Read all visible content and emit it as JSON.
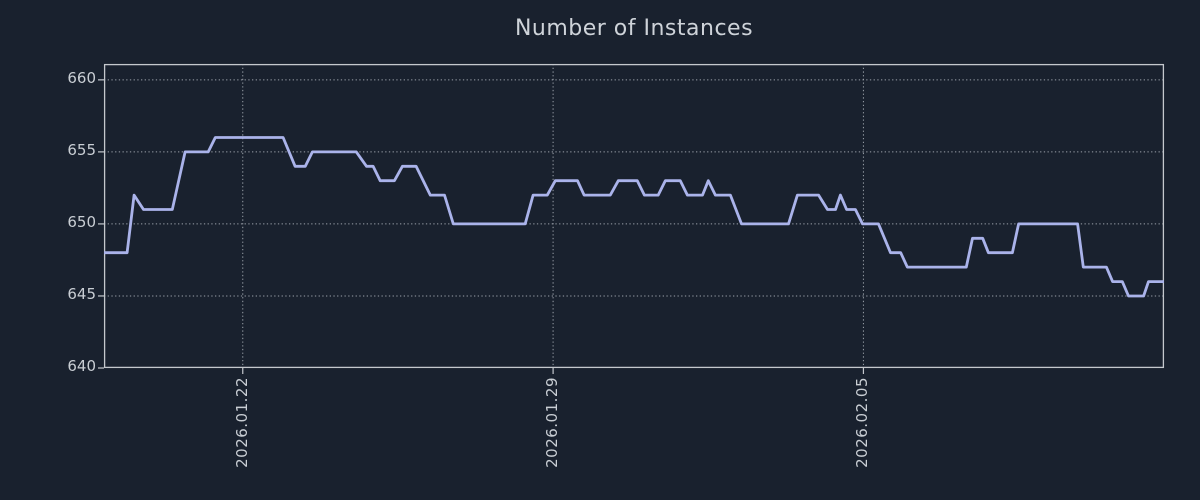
{
  "colors": {
    "background": "#19212e",
    "line": "#aab3ea",
    "grid": "#a9afb7",
    "frame": "#c4c8cd",
    "text": "#ced3d9",
    "tick_text": "#c9ced4"
  },
  "chart_data": {
    "type": "line",
    "title": "Number of Instances",
    "grid": true,
    "legend": false,
    "x_axis": {
      "unit": "days relative to 2026.01.22 (fractional days estimated from gridlines)",
      "tick_labels": [
        "2026.01.22",
        "2026.01.29",
        "2026.02.05"
      ],
      "tick_positions_days": [
        0,
        7,
        14
      ],
      "range_days": [
        -3.13,
        20.78
      ]
    },
    "y_axis": {
      "tick_labels": [
        "640",
        "645",
        "650",
        "655",
        "660"
      ],
      "tick_values": [
        640,
        645,
        650,
        655,
        660
      ],
      "range": [
        640,
        661.1
      ]
    },
    "series": [
      {
        "name": "instances",
        "points": [
          [
            -3.13,
            648
          ],
          [
            -2.61,
            648
          ],
          [
            -2.45,
            652
          ],
          [
            -2.24,
            651
          ],
          [
            -1.59,
            651
          ],
          [
            -1.3,
            655
          ],
          [
            -0.78,
            655
          ],
          [
            -0.62,
            656
          ],
          [
            0.91,
            656
          ],
          [
            1.18,
            654
          ],
          [
            1.41,
            654
          ],
          [
            1.57,
            655
          ],
          [
            2.56,
            655
          ],
          [
            2.79,
            654
          ],
          [
            2.94,
            654
          ],
          [
            3.1,
            653
          ],
          [
            3.42,
            653
          ],
          [
            3.6,
            654
          ],
          [
            3.91,
            654
          ],
          [
            4.23,
            652
          ],
          [
            4.55,
            652
          ],
          [
            4.75,
            650
          ],
          [
            6.37,
            650
          ],
          [
            6.55,
            652
          ],
          [
            6.87,
            652
          ],
          [
            7.05,
            653
          ],
          [
            7.55,
            653
          ],
          [
            7.7,
            652
          ],
          [
            8.29,
            652
          ],
          [
            8.47,
            653
          ],
          [
            8.9,
            653
          ],
          [
            9.06,
            652
          ],
          [
            9.37,
            652
          ],
          [
            9.53,
            653
          ],
          [
            9.87,
            653
          ],
          [
            10.03,
            652
          ],
          [
            10.37,
            652
          ],
          [
            10.5,
            653
          ],
          [
            10.66,
            652
          ],
          [
            11.0,
            652
          ],
          [
            11.25,
            650
          ],
          [
            12.31,
            650
          ],
          [
            12.51,
            652
          ],
          [
            12.99,
            652
          ],
          [
            13.19,
            651
          ],
          [
            13.37,
            651
          ],
          [
            13.48,
            652
          ],
          [
            13.62,
            651
          ],
          [
            13.82,
            651
          ],
          [
            13.98,
            650
          ],
          [
            14.34,
            650
          ],
          [
            14.61,
            648
          ],
          [
            14.84,
            648
          ],
          [
            14.99,
            647
          ],
          [
            16.32,
            647
          ],
          [
            16.46,
            649
          ],
          [
            16.69,
            649
          ],
          [
            16.82,
            648
          ],
          [
            17.36,
            648
          ],
          [
            17.5,
            650
          ],
          [
            18.83,
            650
          ],
          [
            18.96,
            647
          ],
          [
            19.48,
            647
          ],
          [
            19.62,
            646
          ],
          [
            19.84,
            646
          ],
          [
            19.98,
            645
          ],
          [
            20.32,
            645
          ],
          [
            20.43,
            646
          ],
          [
            20.78,
            646
          ]
        ]
      }
    ]
  }
}
